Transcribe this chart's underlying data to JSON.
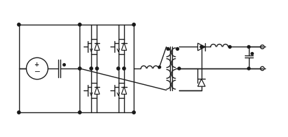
{
  "bg_color": "#ffffff",
  "line_color": "#1a1a1a",
  "lw": 1.0,
  "figsize": [
    4.2,
    2.0
  ],
  "dpi": 100,
  "xlim": [
    0,
    42
  ],
  "ylim": [
    0,
    20
  ]
}
